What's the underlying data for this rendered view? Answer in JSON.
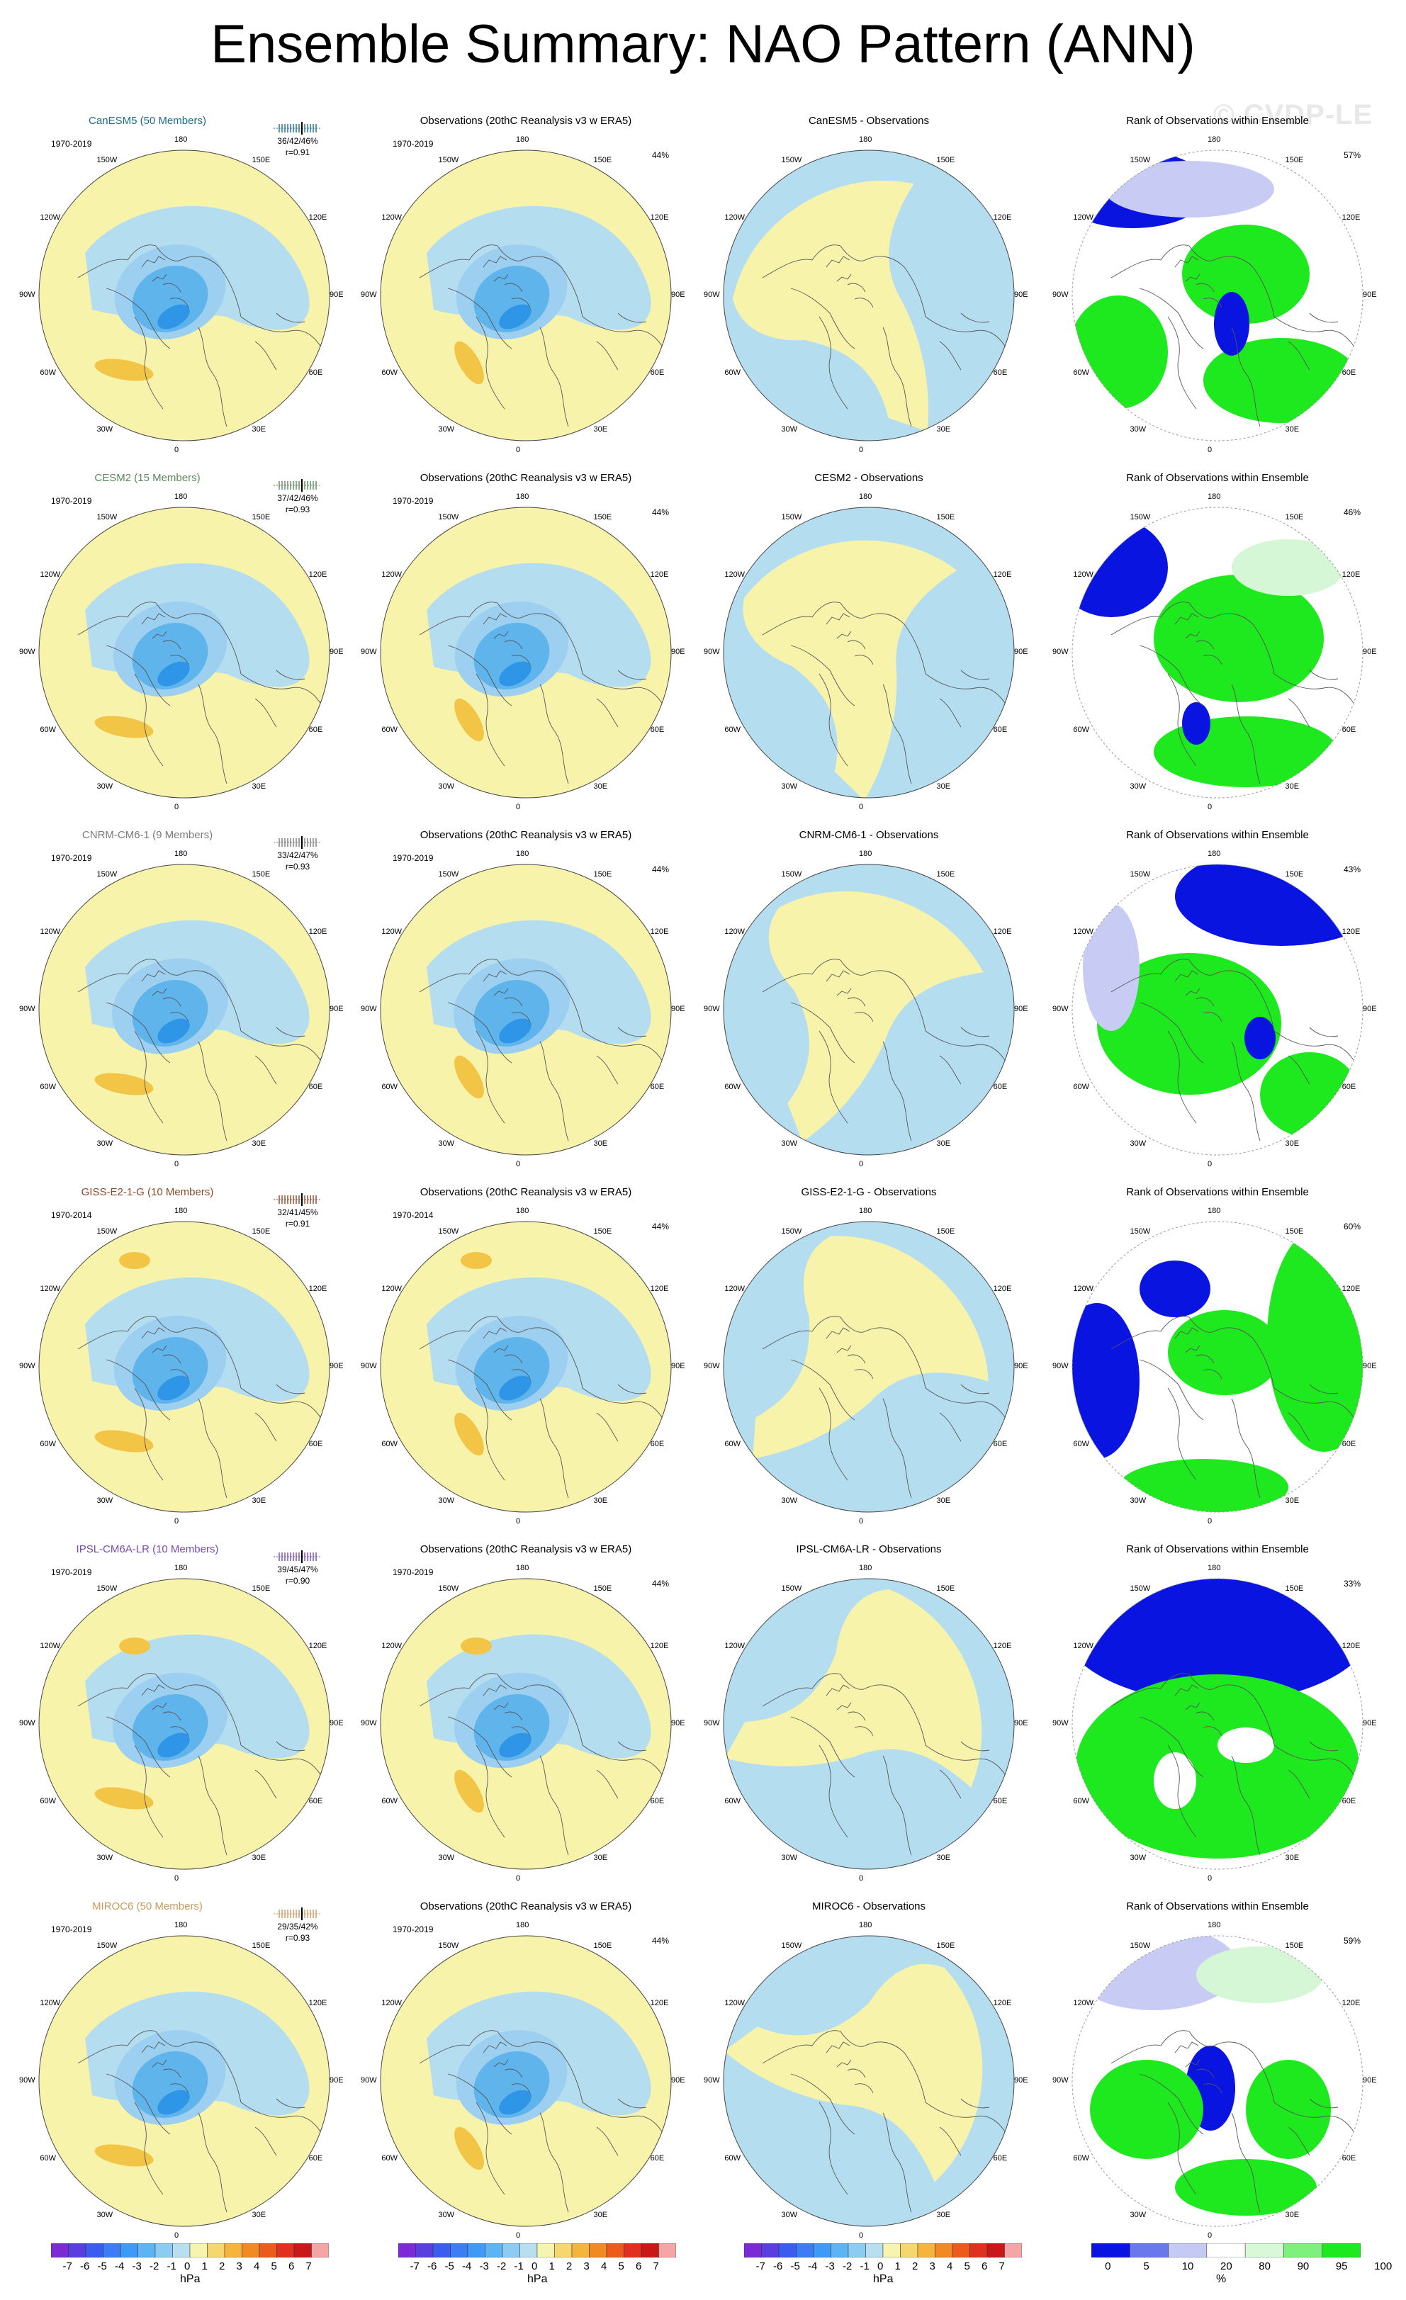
{
  "title": "Ensemble Summary: NAO Pattern (ANN)",
  "watermark": "© CVDP-LE",
  "lon_labels": [
    "180",
    "150E",
    "120E",
    "90E",
    "60E",
    "30E",
    "0",
    "30W",
    "60W",
    "90W",
    "120W",
    "150W"
  ],
  "column_titles": {
    "obs": "Observations (20thC Reanalysis v3 w ERA5)",
    "rank": "Rank of Observations within Ensemble"
  },
  "diff_suffix": " - Observations",
  "models": [
    {
      "name": "CanESM5 (50 Members)",
      "short": "CanESM5",
      "color": "#1a6e8c",
      "period": "1970-2019",
      "frac": "36/42/46%",
      "r": "r=0.91",
      "obs_period": "1970-2019",
      "obs_pct": "44%",
      "rank_pct": "57%"
    },
    {
      "name": "CESM2 (15 Members)",
      "short": "CESM2",
      "color": "#5a8a5a",
      "period": "1970-2019",
      "frac": "37/42/46%",
      "r": "r=0.93",
      "obs_period": "1970-2019",
      "obs_pct": "44%",
      "rank_pct": "46%"
    },
    {
      "name": "CNRM-CM6-1 (9 Members)",
      "short": "CNRM-CM6-1",
      "color": "#7a7a7a",
      "period": "1970-2019",
      "frac": "33/42/47%",
      "r": "r=0.93",
      "obs_period": "1970-2019",
      "obs_pct": "44%",
      "rank_pct": "43%"
    },
    {
      "name": "GISS-E2-1-G (10 Members)",
      "short": "GISS-E2-1-G",
      "color": "#8b4a2a",
      "period": "1970-2014",
      "frac": "32/41/45%",
      "r": "r=0.91",
      "obs_period": "1970-2014",
      "obs_pct": "44%",
      "rank_pct": "60%"
    },
    {
      "name": "IPSL-CM6A-LR (10 Members)",
      "short": "IPSL-CM6A-LR",
      "color": "#7a4ab0",
      "period": "1970-2019",
      "frac": "39/45/47%",
      "r": "r=0.90",
      "obs_period": "1970-2019",
      "obs_pct": "44%",
      "rank_pct": "33%"
    },
    {
      "name": "MIROC6 (50 Members)",
      "short": "MIROC6",
      "color": "#c89a5a",
      "period": "1970-2019",
      "frac": "29/35/42%",
      "r": "r=0.93",
      "obs_period": "1970-2019",
      "obs_pct": "44%",
      "rank_pct": "59%"
    }
  ],
  "colorbar_hpa": {
    "labels": [
      "-7",
      "-6",
      "-5",
      "-4",
      "-3",
      "-2",
      "-1",
      "0",
      "1",
      "2",
      "3",
      "4",
      "5",
      "6",
      "7"
    ],
    "unit": "hPa",
    "colors": [
      "#7b2ad6",
      "#5a3ee0",
      "#3a5cf0",
      "#3c7cf5",
      "#3e9af6",
      "#5db4f5",
      "#8ccbf2",
      "#b8dff0",
      "#f7f4b0",
      "#f5d76e",
      "#f5b43c",
      "#f28a22",
      "#ec5a1c",
      "#e03020",
      "#c81818",
      "#f4a6a6"
    ]
  },
  "colorbar_rank": {
    "labels": [
      "0",
      "5",
      "10",
      "20",
      "80",
      "90",
      "95",
      "100"
    ],
    "unit": "%",
    "colors": [
      "#0a14e0",
      "#6a78ee",
      "#c4caf4",
      "#ffffff",
      "#d8f8d8",
      "#7ef07e",
      "#1ee81e"
    ]
  },
  "map_colors": {
    "blue_light": "#b5ddf0",
    "blue_mid": "#5fb4ec",
    "blue_dark": "#2f95e6",
    "yellow": "#f8f3ab",
    "orange": "#f3c546",
    "rank_blue": "#0a14e0",
    "rank_lblue": "#c8ccf5",
    "rank_green": "#1ee81e",
    "rank_lgreen": "#d6f7d6"
  }
}
